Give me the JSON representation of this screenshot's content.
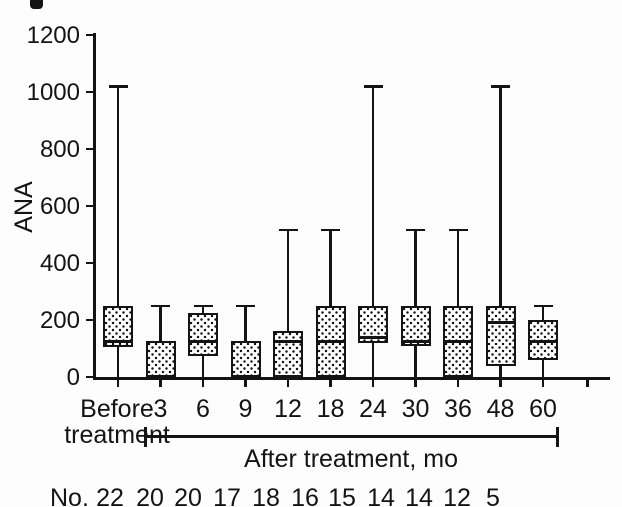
{
  "figure": {
    "y_axis_title": "ANA",
    "x_axis_group_label": "After treatment, mo",
    "before_label_line1": "Before",
    "before_label_line2": "treatment",
    "n_row_prefix": "No.",
    "ink_color": "#141414"
  },
  "chart_data": {
    "type": "box",
    "title": "",
    "ylabel": "ANA",
    "xlabel": "After treatment, mo",
    "ylim": [
      0,
      1200
    ],
    "yticks": [
      0,
      200,
      400,
      600,
      800,
      1000,
      1200
    ],
    "grid": false,
    "legend": false,
    "categories": [
      "Before treatment",
      "3",
      "6",
      "9",
      "12",
      "18",
      "24",
      "30",
      "36",
      "48",
      "60"
    ],
    "n_per_group": [
      22,
      20,
      20,
      17,
      18,
      16,
      15,
      14,
      14,
      12,
      5
    ],
    "boxes": [
      {
        "label": "Before treatment",
        "whisker_low": 0,
        "q1": 105,
        "median": 125,
        "q3": 250,
        "whisker_high": 1020
      },
      {
        "label": "3",
        "whisker_low": 0,
        "q1": 0,
        "median": null,
        "q3": 125,
        "whisker_high": 250
      },
      {
        "label": "6",
        "whisker_low": 0,
        "q1": 75,
        "median": 125,
        "q3": 225,
        "whisker_high": 250
      },
      {
        "label": "9",
        "whisker_low": 0,
        "q1": 0,
        "median": null,
        "q3": 125,
        "whisker_high": 250
      },
      {
        "label": "12",
        "whisker_low": 0,
        "q1": 0,
        "median": 125,
        "q3": 160,
        "whisker_high": 515
      },
      {
        "label": "18",
        "whisker_low": 0,
        "q1": 0,
        "median": 125,
        "q3": 250,
        "whisker_high": 515
      },
      {
        "label": "24",
        "whisker_low": 0,
        "q1": 120,
        "median": 140,
        "q3": 250,
        "whisker_high": 1020
      },
      {
        "label": "30",
        "whisker_low": 0,
        "q1": 110,
        "median": 125,
        "q3": 250,
        "whisker_high": 515
      },
      {
        "label": "36",
        "whisker_low": 0,
        "q1": 0,
        "median": 125,
        "q3": 250,
        "whisker_high": 515
      },
      {
        "label": "48",
        "whisker_low": 0,
        "q1": 40,
        "median": 190,
        "q3": 250,
        "whisker_high": 1020
      },
      {
        "label": "60",
        "whisker_low": 0,
        "q1": 60,
        "median": 125,
        "q3": 200,
        "whisker_high": 250
      }
    ]
  }
}
